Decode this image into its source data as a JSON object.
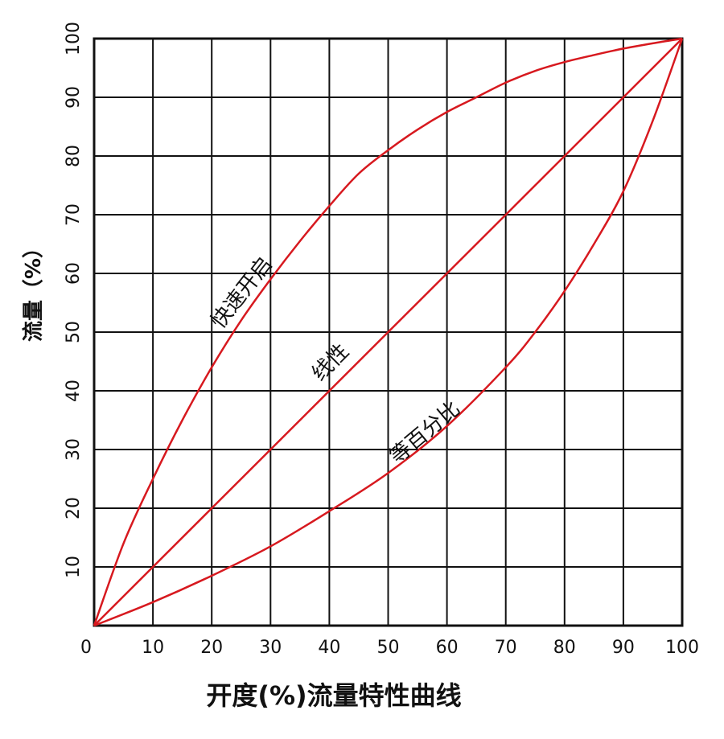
{
  "chart_data": {
    "type": "line",
    "title": "开度(%)流量特性曲线",
    "xlabel": "",
    "ylabel": "流量（%）",
    "xlim": [
      0,
      100
    ],
    "ylim": [
      0,
      100
    ],
    "x_ticks": [
      0,
      10,
      20,
      30,
      40,
      50,
      60,
      70,
      80,
      90,
      100
    ],
    "y_ticks": [
      10,
      20,
      30,
      40,
      50,
      60,
      70,
      80,
      90,
      100
    ],
    "grid": true,
    "line_color": "#d7191f",
    "series": [
      {
        "name": "快速开启",
        "x": [
          0,
          5,
          10,
          15,
          20,
          25,
          30,
          35,
          40,
          45,
          50,
          55,
          60,
          65,
          70,
          75,
          80,
          85,
          90,
          95,
          100
        ],
        "y": [
          0,
          14,
          25,
          35,
          44,
          52,
          59,
          65.5,
          71.5,
          77,
          81,
          84.5,
          87.5,
          90,
          92.5,
          94.5,
          96,
          97.2,
          98.3,
          99.2,
          100
        ]
      },
      {
        "name": "线性",
        "x": [
          0,
          100
        ],
        "y": [
          0,
          100
        ]
      },
      {
        "name": "等百分比",
        "x": [
          0,
          10,
          20,
          30,
          40,
          50,
          60,
          70,
          75,
          80,
          85,
          90,
          95,
          100
        ],
        "y": [
          0,
          4,
          8.5,
          13.5,
          19.5,
          26,
          34,
          44,
          50,
          57,
          65,
          74,
          86,
          100
        ]
      }
    ]
  }
}
